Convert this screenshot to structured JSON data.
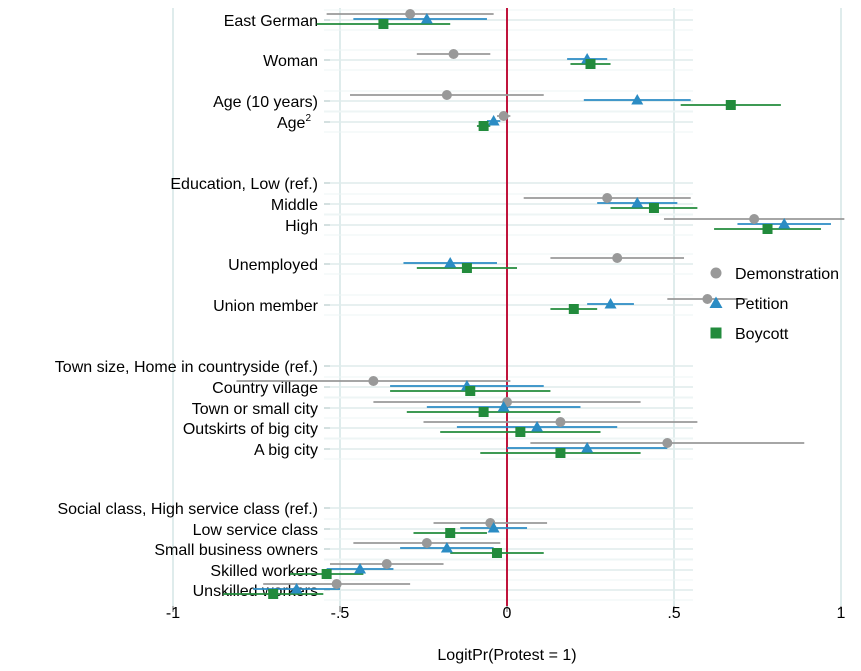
{
  "chart_data": {
    "type": "scatter",
    "title": "",
    "xlabel": "LogitPr(Protest = 1)",
    "ylabel": "",
    "xlim": [
      -1,
      1.1
    ],
    "grid": true,
    "legend_position": "right",
    "reference_line": 0,
    "colors": {
      "Demonstration": "#999999",
      "Petition": "#2b8cc4",
      "Boycott": "#228b3c",
      "reference_line": "#c0143c",
      "grid": "#dfecec"
    },
    "x_ticks": [
      {
        "value": -1,
        "label": "-1"
      },
      {
        "value": -0.5,
        "label": "-.5"
      },
      {
        "value": 0,
        "label": "0"
      },
      {
        "value": 0.5,
        "label": ".5"
      },
      {
        "value": 1,
        "label": "1"
      }
    ],
    "legend": [
      {
        "name": "Demonstration",
        "marker": "circle"
      },
      {
        "name": "Petition",
        "marker": "triangle"
      },
      {
        "name": "Boycott",
        "marker": "square"
      }
    ],
    "rows": [
      {
        "label": "East German",
        "superscript": "",
        "indent": 0,
        "estimates": [
          {
            "series": "Demonstration",
            "value": -0.29,
            "lo": -0.54,
            "hi": -0.04
          },
          {
            "series": "Petition",
            "value": -0.24,
            "lo": -0.46,
            "hi": -0.06
          },
          {
            "series": "Boycott",
            "value": -0.37,
            "lo": -0.57,
            "hi": -0.17
          }
        ]
      },
      {
        "label": "Woman",
        "superscript": "",
        "indent": 0,
        "estimates": [
          {
            "series": "Demonstration",
            "value": -0.16,
            "lo": -0.27,
            "hi": -0.05
          },
          {
            "series": "Petition",
            "value": 0.24,
            "lo": 0.18,
            "hi": 0.3
          },
          {
            "series": "Boycott",
            "value": 0.25,
            "lo": 0.19,
            "hi": 0.31
          }
        ]
      },
      {
        "label": "Age (10 years)",
        "superscript": "",
        "indent": 0,
        "estimates": [
          {
            "series": "Demonstration",
            "value": -0.18,
            "lo": -0.47,
            "hi": 0.11
          },
          {
            "series": "Petition",
            "value": 0.39,
            "lo": 0.23,
            "hi": 0.55
          },
          {
            "series": "Boycott",
            "value": 0.67,
            "lo": 0.52,
            "hi": 0.82
          }
        ]
      },
      {
        "label": "Age",
        "superscript": "2",
        "indent": 1,
        "estimates": [
          {
            "series": "Demonstration",
            "value": -0.01,
            "lo": -0.03,
            "hi": 0.01
          },
          {
            "series": "Petition",
            "value": -0.04,
            "lo": -0.06,
            "hi": -0.02
          },
          {
            "series": "Boycott",
            "value": -0.07,
            "lo": -0.09,
            "hi": -0.05
          }
        ]
      },
      {
        "label": "Education, Low (ref.)",
        "superscript": "",
        "indent": 0,
        "estimates": []
      },
      {
        "label": "Middle",
        "superscript": "",
        "indent": 1,
        "estimates": [
          {
            "series": "Demonstration",
            "value": 0.3,
            "lo": 0.05,
            "hi": 0.55
          },
          {
            "series": "Petition",
            "value": 0.39,
            "lo": 0.27,
            "hi": 0.51
          },
          {
            "series": "Boycott",
            "value": 0.44,
            "lo": 0.31,
            "hi": 0.57
          }
        ]
      },
      {
        "label": "High",
        "superscript": "",
        "indent": 1,
        "estimates": [
          {
            "series": "Demonstration",
            "value": 0.74,
            "lo": 0.47,
            "hi": 1.01
          },
          {
            "series": "Petition",
            "value": 0.83,
            "lo": 0.69,
            "hi": 0.97
          },
          {
            "series": "Boycott",
            "value": 0.78,
            "lo": 0.62,
            "hi": 0.94
          }
        ]
      },
      {
        "label": "Unemployed",
        "superscript": "",
        "indent": 0,
        "estimates": [
          {
            "series": "Demonstration",
            "value": 0.33,
            "lo": 0.13,
            "hi": 0.53
          },
          {
            "series": "Petition",
            "value": -0.17,
            "lo": -0.31,
            "hi": -0.03
          },
          {
            "series": "Boycott",
            "value": -0.12,
            "lo": -0.27,
            "hi": 0.03
          }
        ]
      },
      {
        "label": "Union member",
        "superscript": "",
        "indent": 0,
        "estimates": [
          {
            "series": "Demonstration",
            "value": 0.6,
            "lo": 0.48,
            "hi": 0.72
          },
          {
            "series": "Petition",
            "value": 0.31,
            "lo": 0.24,
            "hi": 0.38
          },
          {
            "series": "Boycott",
            "value": 0.2,
            "lo": 0.13,
            "hi": 0.27
          }
        ]
      },
      {
        "label": "Town size, Home in countryside (ref.)",
        "superscript": "",
        "indent": 0,
        "estimates": []
      },
      {
        "label": "Country village",
        "superscript": "",
        "indent": 1,
        "estimates": [
          {
            "series": "Demonstration",
            "value": -0.4,
            "lo": -0.81,
            "hi": 0.01
          },
          {
            "series": "Petition",
            "value": -0.12,
            "lo": -0.35,
            "hi": 0.11
          },
          {
            "series": "Boycott",
            "value": -0.11,
            "lo": -0.35,
            "hi": 0.13
          }
        ]
      },
      {
        "label": "Town or small city",
        "superscript": "",
        "indent": 1,
        "estimates": [
          {
            "series": "Demonstration",
            "value": 0.0,
            "lo": -0.4,
            "hi": 0.4
          },
          {
            "series": "Petition",
            "value": -0.01,
            "lo": -0.24,
            "hi": 0.22
          },
          {
            "series": "Boycott",
            "value": -0.07,
            "lo": -0.3,
            "hi": 0.16
          }
        ]
      },
      {
        "label": "Outskirts of big city",
        "superscript": "",
        "indent": 1,
        "estimates": [
          {
            "series": "Demonstration",
            "value": 0.16,
            "lo": -0.25,
            "hi": 0.57
          },
          {
            "series": "Petition",
            "value": 0.09,
            "lo": -0.15,
            "hi": 0.33
          },
          {
            "series": "Boycott",
            "value": 0.04,
            "lo": -0.2,
            "hi": 0.28
          }
        ]
      },
      {
        "label": "A big city",
        "superscript": "",
        "indent": 1,
        "estimates": [
          {
            "series": "Demonstration",
            "value": 0.48,
            "lo": 0.07,
            "hi": 0.89
          },
          {
            "series": "Petition",
            "value": 0.24,
            "lo": 0.0,
            "hi": 0.48
          },
          {
            "series": "Boycott",
            "value": 0.16,
            "lo": -0.08,
            "hi": 0.4
          }
        ]
      },
      {
        "label": "Social class, High service class (ref.)",
        "superscript": "",
        "indent": 0,
        "estimates": []
      },
      {
        "label": "Low service class",
        "superscript": "",
        "indent": 1,
        "estimates": [
          {
            "series": "Demonstration",
            "value": -0.05,
            "lo": -0.22,
            "hi": 0.12
          },
          {
            "series": "Petition",
            "value": -0.04,
            "lo": -0.14,
            "hi": 0.06
          },
          {
            "series": "Boycott",
            "value": -0.17,
            "lo": -0.28,
            "hi": -0.06
          }
        ]
      },
      {
        "label": "Small business owners",
        "superscript": "",
        "indent": 1,
        "estimates": [
          {
            "series": "Demonstration",
            "value": -0.24,
            "lo": -0.46,
            "hi": -0.02
          },
          {
            "series": "Petition",
            "value": -0.18,
            "lo": -0.32,
            "hi": -0.04
          },
          {
            "series": "Boycott",
            "value": -0.03,
            "lo": -0.17,
            "hi": 0.11
          }
        ]
      },
      {
        "label": "Skilled workers",
        "superscript": "",
        "indent": 1,
        "estimates": [
          {
            "series": "Demonstration",
            "value": -0.36,
            "lo": -0.53,
            "hi": -0.19
          },
          {
            "series": "Petition",
            "value": -0.44,
            "lo": -0.54,
            "hi": -0.34
          },
          {
            "series": "Boycott",
            "value": -0.54,
            "lo": -0.65,
            "hi": -0.43
          }
        ]
      },
      {
        "label": "Unskilled workers",
        "superscript": "",
        "indent": 1,
        "estimates": [
          {
            "series": "Demonstration",
            "value": -0.51,
            "lo": -0.73,
            "hi": -0.29
          },
          {
            "series": "Petition",
            "value": -0.63,
            "lo": -0.76,
            "hi": -0.5
          },
          {
            "series": "Boycott",
            "value": -0.7,
            "lo": -0.85,
            "hi": -0.55
          }
        ]
      }
    ]
  }
}
